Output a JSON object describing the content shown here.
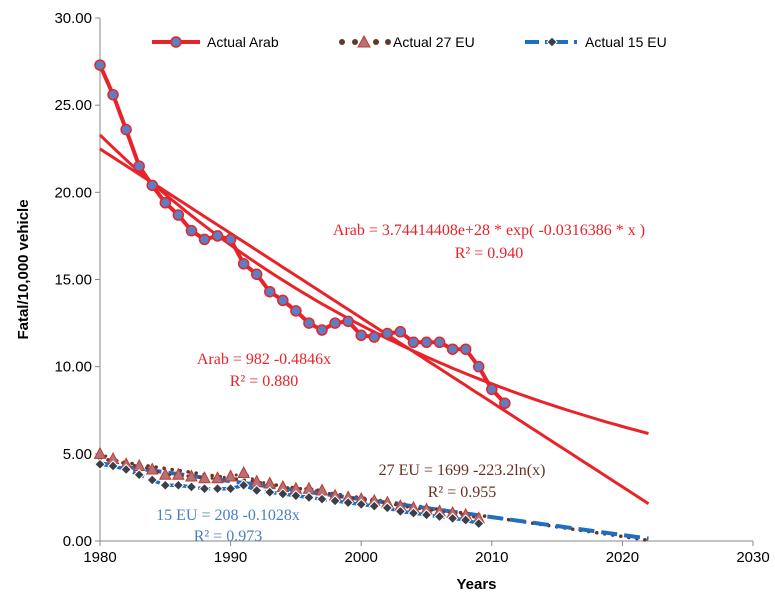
{
  "chart_data": {
    "type": "line",
    "xlabel": "Years",
    "ylabel": "Fatal/10,000 vehicle",
    "xlim": [
      1980,
      2030
    ],
    "ylim": [
      0,
      30
    ],
    "x_ticks": [
      "1980",
      "1990",
      "2000",
      "2010",
      "2020",
      "2030"
    ],
    "y_ticks": [
      "0.00",
      "5.00",
      "10.00",
      "15.00",
      "20.00",
      "25.00",
      "30.00"
    ],
    "grid": false,
    "legend_position": "top",
    "series": [
      {
        "name": "Actual Arab",
        "color": "#e8232a",
        "marker_fill": "#5b7fc0",
        "x": [
          1980,
          1981,
          1982,
          1983,
          1984,
          1985,
          1986,
          1987,
          1988,
          1989,
          1990,
          1991,
          1992,
          1993,
          1994,
          1995,
          1996,
          1997,
          1998,
          1999,
          2000,
          2001,
          2002,
          2003,
          2004,
          2005,
          2006,
          2007,
          2008,
          2009,
          2010,
          2011
        ],
        "y": [
          27.3,
          25.6,
          23.6,
          21.5,
          20.4,
          19.4,
          18.7,
          17.8,
          17.3,
          17.5,
          17.3,
          15.9,
          15.3,
          14.3,
          13.8,
          13.2,
          12.5,
          12.1,
          12.5,
          12.6,
          11.8,
          11.7,
          11.9,
          12.0,
          11.4,
          11.4,
          11.4,
          11.0,
          11.0,
          10.0,
          8.7,
          7.9
        ]
      },
      {
        "name": "Actual 27 EU",
        "color": "#5e3a2a",
        "marker_fill": "#b5707a",
        "x": [
          1980,
          1981,
          1982,
          1983,
          1984,
          1985,
          1986,
          1987,
          1988,
          1989,
          1990,
          1991,
          1992,
          1993,
          1994,
          1995,
          1996,
          1997,
          1998,
          1999,
          2000,
          2001,
          2002,
          2003,
          2004,
          2005,
          2006,
          2007,
          2008,
          2009
        ],
        "y": [
          5.0,
          4.7,
          4.4,
          4.3,
          4.1,
          3.8,
          3.8,
          3.7,
          3.6,
          3.6,
          3.7,
          3.9,
          3.4,
          3.3,
          3.1,
          3.0,
          3.0,
          2.9,
          2.6,
          2.5,
          2.4,
          2.3,
          2.2,
          2.0,
          1.9,
          1.8,
          1.7,
          1.6,
          1.5,
          1.3
        ]
      },
      {
        "name": "Actual 15 EU",
        "color": "#1f6ebf",
        "marker_fill": "#3a3f4a",
        "x": [
          1980,
          1981,
          1982,
          1983,
          1984,
          1985,
          1986,
          1987,
          1988,
          1989,
          1990,
          1991,
          1992,
          1993,
          1994,
          1995,
          1996,
          1997,
          1998,
          1999,
          2000,
          2001,
          2002,
          2003,
          2004,
          2005,
          2006,
          2007,
          2008,
          2009
        ],
        "y": [
          4.4,
          4.3,
          4.1,
          3.8,
          3.5,
          3.2,
          3.2,
          3.1,
          3.0,
          3.0,
          3.0,
          3.2,
          2.9,
          2.8,
          2.7,
          2.6,
          2.5,
          2.4,
          2.3,
          2.2,
          2.1,
          2.0,
          1.9,
          1.7,
          1.6,
          1.5,
          1.4,
          1.3,
          1.2,
          1.0
        ]
      }
    ],
    "trendlines": [
      {
        "series": "Actual Arab",
        "type": "linear",
        "slope": -0.4846,
        "intercept": 982,
        "x_range": [
          1980,
          2022
        ],
        "color": "#e8232a"
      },
      {
        "series": "Actual Arab",
        "type": "exponential",
        "coef": 3.74414408e+28,
        "rate": -0.0316386,
        "x_range": [
          1980,
          2022
        ],
        "color": "#e8232a"
      },
      {
        "series": "Actual 27 EU",
        "type": "logarithmic",
        "a": 1699,
        "b": -223.2,
        "x_range": [
          1980,
          2022
        ],
        "color": "#6b2f22"
      },
      {
        "series": "Actual 15 EU",
        "type": "linear",
        "slope": -0.1028,
        "intercept": 208,
        "x_range": [
          1980,
          2022
        ],
        "color": "#1f6ebf"
      }
    ],
    "annotations": [
      {
        "id": "arab-exp-eq",
        "text": "Arab = 3.74414408e+28 * exp( -0.0316386 * x )",
        "color": "#e8232a"
      },
      {
        "id": "arab-exp-r2",
        "text": "R² = 0.940",
        "color": "#e8232a"
      },
      {
        "id": "arab-lin-eq",
        "text": "Arab = 982 -0.4846x",
        "color": "#e8232a"
      },
      {
        "id": "arab-lin-r2",
        "text": "R² = 0.880",
        "color": "#e8232a"
      },
      {
        "id": "eu27-eq",
        "text": "27 EU = 1699 -223.2ln(x)",
        "color": "#6b2f22"
      },
      {
        "id": "eu27-r2",
        "text": "R² = 0.955",
        "color": "#6b2f22"
      },
      {
        "id": "eu15-eq",
        "text": "15 EU = 208 -0.1028x",
        "color": "#4a7fc0"
      },
      {
        "id": "eu15-r2",
        "text": "R² = 0.973",
        "color": "#4a7fc0"
      }
    ]
  }
}
